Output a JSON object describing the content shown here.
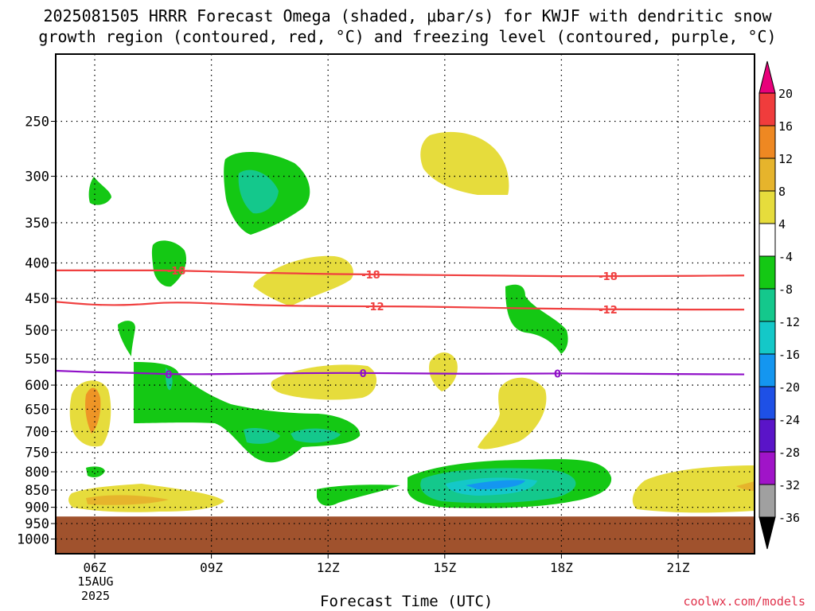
{
  "title": {
    "line1": "2025081505 HRRR Forecast Omega (shaded, μbar/s) for KWJF with dendritic snow",
    "line2": "growth region (contoured, red, °C) and freezing level (contoured, purple, °C)"
  },
  "footer": {
    "xlabel": "Forecast Time (UTC)",
    "credit": "coolwx.com/models",
    "date_line1": "15AUG",
    "date_line2": "2025"
  },
  "chart_data": {
    "type": "time-height cross-section",
    "x_ticks": [
      "06Z",
      "09Z",
      "12Z",
      "15Z",
      "18Z",
      "21Z"
    ],
    "x_range_hours": [
      5,
      22.7
    ],
    "y_axis": "pressure (hPa), log scale, inverted",
    "y_ticks": [
      250,
      300,
      350,
      400,
      450,
      500,
      550,
      600,
      650,
      700,
      750,
      800,
      850,
      900,
      950,
      1000
    ],
    "y_range": [
      200,
      1050
    ],
    "ground_pressure": 928,
    "grid": true,
    "colorbar": {
      "labels": [
        "20",
        "16",
        "12",
        "8",
        "4",
        "-4",
        "-8",
        "-12",
        "-16",
        "-20",
        "-24",
        "-28",
        "-32",
        "-36"
      ],
      "colors": [
        "#e8007a",
        "#f03c3c",
        "#ee8822",
        "#e6b42c",
        "#e6dc3c",
        "#ffffff",
        "#14c814",
        "#14c88c",
        "#14c8c8",
        "#1496f0",
        "#1e50e6",
        "#5a14c8",
        "#a014c8",
        "#a0a0a0",
        "#000000"
      ]
    },
    "contours": [
      {
        "name": "-18",
        "color": "#f04040",
        "x": [
          5,
          6,
          7,
          8,
          10,
          12,
          14,
          16,
          18,
          20,
          22.7
        ],
        "p": [
          410,
          410,
          410,
          410,
          413,
          415,
          416,
          417,
          418,
          418,
          417
        ],
        "labels_at": [
          8.1,
          13.1,
          19.2
        ]
      },
      {
        "name": "-12",
        "color": "#f04040",
        "x": [
          5,
          6,
          7,
          8,
          10,
          12,
          14,
          16,
          18,
          20,
          22.7
        ],
        "p": [
          455,
          460,
          460,
          455,
          460,
          462,
          462,
          464,
          466,
          467,
          467
        ],
        "labels_at": [
          13.2,
          19.2
        ]
      },
      {
        "name": "0",
        "color": "#9010c8",
        "x": [
          5,
          6,
          7,
          8,
          10,
          12,
          14,
          16,
          18,
          20,
          22.7
        ],
        "p": [
          572,
          575,
          576,
          579,
          578,
          576,
          577,
          578,
          577,
          578,
          579
        ],
        "labels_at": [
          7.9,
          12.9,
          17.9
        ]
      }
    ]
  }
}
